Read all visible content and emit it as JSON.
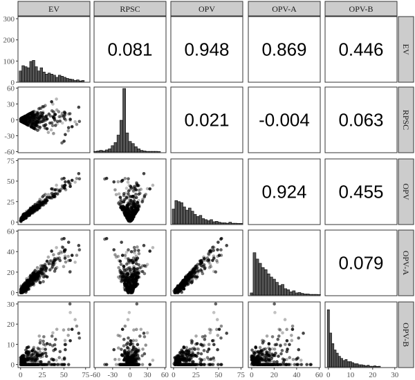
{
  "chart_data": {
    "type": "scatter",
    "layout": "pairs-matrix",
    "variables": [
      "EV",
      "RPSC",
      "OPV",
      "OPV-A",
      "OPV-B"
    ],
    "axes": {
      "EV": {
        "range": [
          -3,
          80
        ],
        "ticks": [
          0,
          25,
          50,
          75
        ]
      },
      "RPSC": {
        "range": [
          -62,
          62
        ],
        "ticks": [
          -60,
          -30,
          0,
          30,
          60
        ]
      },
      "OPV": {
        "range": [
          -3,
          77
        ],
        "ticks": [
          0,
          25,
          50,
          75
        ]
      },
      "OPV-A": {
        "range": [
          -3,
          61
        ],
        "ticks": [
          0,
          20,
          40,
          60
        ]
      },
      "OPV-B": {
        "range": [
          -1.5,
          31
        ],
        "ticks": [
          0,
          10,
          20,
          30
        ]
      }
    },
    "diagonal_count_axis": {
      "range": [
        0,
        310
      ],
      "ticks": [
        0,
        100,
        200,
        300
      ]
    },
    "correlations": [
      {
        "row": "EV",
        "col": "RPSC",
        "value": "0.081"
      },
      {
        "row": "EV",
        "col": "OPV",
        "value": "0.948"
      },
      {
        "row": "EV",
        "col": "OPV-A",
        "value": "0.869"
      },
      {
        "row": "EV",
        "col": "OPV-B",
        "value": "0.446"
      },
      {
        "row": "RPSC",
        "col": "OPV",
        "value": "0.021"
      },
      {
        "row": "RPSC",
        "col": "OPV-A",
        "value": "-0.004"
      },
      {
        "row": "RPSC",
        "col": "OPV-B",
        "value": "0.063"
      },
      {
        "row": "OPV",
        "col": "OPV-A",
        "value": "0.924"
      },
      {
        "row": "OPV",
        "col": "OPV-B",
        "value": "0.455"
      },
      {
        "row": "OPV-A",
        "col": "OPV-B",
        "value": "0.079"
      }
    ],
    "histograms": {
      "EV": {
        "bin_width": 3,
        "start": -1.5,
        "counts": [
          50,
          75,
          70,
          65,
          95,
          100,
          70,
          50,
          65,
          45,
          35,
          40,
          35,
          30,
          20,
          30,
          25,
          20,
          15,
          12,
          10,
          5,
          8,
          3,
          5
        ]
      },
      "RPSC": {
        "bin_width": 5,
        "start": -62.5,
        "counts": [
          3,
          5,
          8,
          5,
          10,
          15,
          30,
          45,
          80,
          150,
          300,
          90,
          50,
          40,
          25,
          15,
          8,
          5,
          3,
          3,
          3,
          3,
          2
        ]
      },
      "OPV": {
        "bin_width": 3,
        "start": -1.5,
        "counts": [
          70,
          110,
          105,
          100,
          80,
          65,
          75,
          60,
          45,
          35,
          40,
          25,
          20,
          15,
          20,
          10,
          12,
          8,
          5,
          5,
          3,
          8,
          3,
          3,
          2,
          2
        ]
      },
      "OPV-A": {
        "bin_width": 2.5,
        "start": -1.25,
        "counts": [
          10,
          200,
          170,
          150,
          130,
          120,
          100,
          85,
          75,
          60,
          45,
          50,
          30,
          25,
          15,
          20,
          10,
          12,
          8,
          5,
          5,
          3,
          3,
          3,
          2
        ]
      },
      "OPV-B": {
        "bin_width": 1,
        "start": -0.5,
        "counts": [
          270,
          160,
          110,
          80,
          65,
          50,
          40,
          30,
          35,
          25,
          25,
          20,
          15,
          15,
          10,
          10,
          8,
          5,
          8,
          3,
          3,
          5,
          2,
          3
        ]
      }
    },
    "point_color": "#000000",
    "point_opacity_range": [
      0.2,
      0.85
    ],
    "histogram_fill": "#555555",
    "strip_fill": "#cccccc",
    "grid": false,
    "scatter_point_count": 350
  }
}
